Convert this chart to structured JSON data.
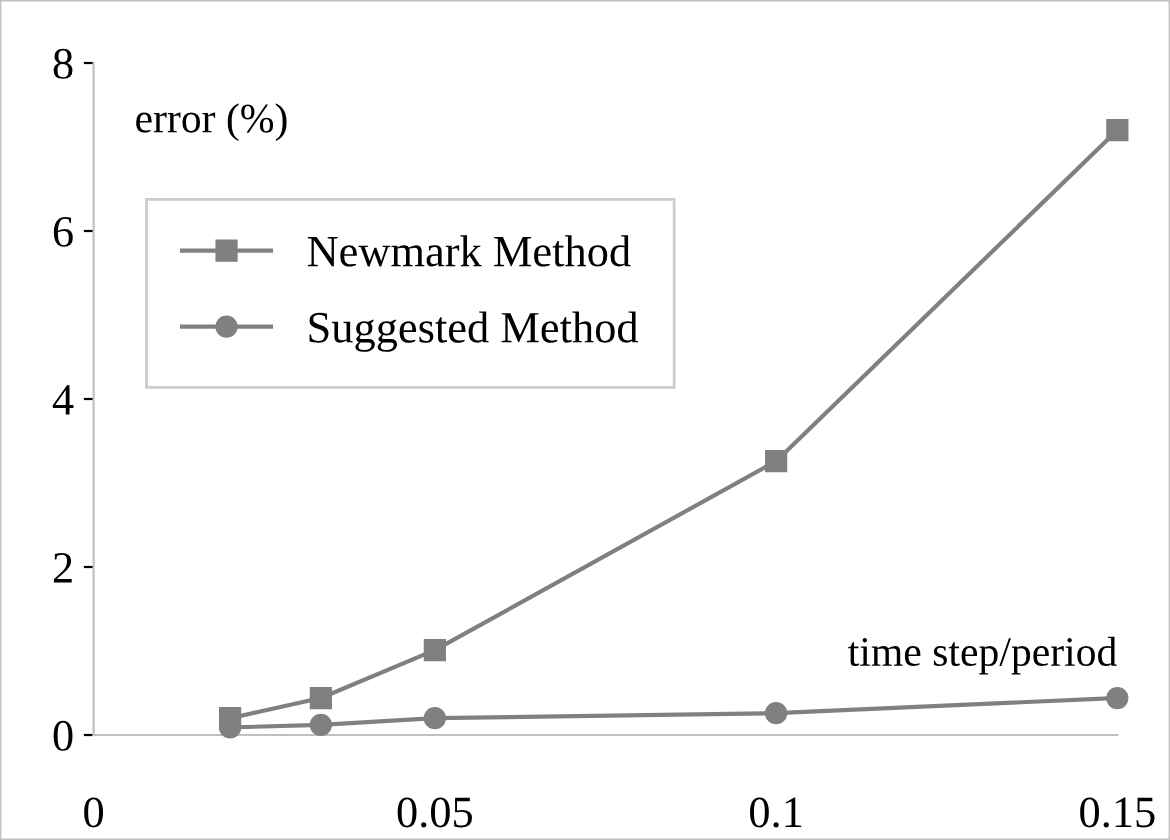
{
  "chart_data": {
    "type": "line",
    "xlabel": "time step/period",
    "ylabel": "error (%)",
    "x": [
      0.02,
      0.0333,
      0.05,
      0.1,
      0.15
    ],
    "series": [
      {
        "name": "Newmark Method",
        "color": "#808080",
        "marker": "square",
        "values": [
          0.2,
          0.44,
          1.01,
          3.26,
          7.2
        ]
      },
      {
        "name": "Suggested Method",
        "color": "#808080",
        "marker": "circle",
        "values": [
          0.09,
          0.12,
          0.2,
          0.26,
          0.44
        ]
      }
    ],
    "xlim": [
      0,
      0.15
    ],
    "xticks": [
      0,
      0.05,
      0.1,
      0.15
    ],
    "ylim": [
      0,
      8
    ],
    "yticks": [
      0,
      2,
      4,
      6,
      8
    ],
    "grid": false,
    "legend": "top left",
    "line_style": "solid"
  }
}
